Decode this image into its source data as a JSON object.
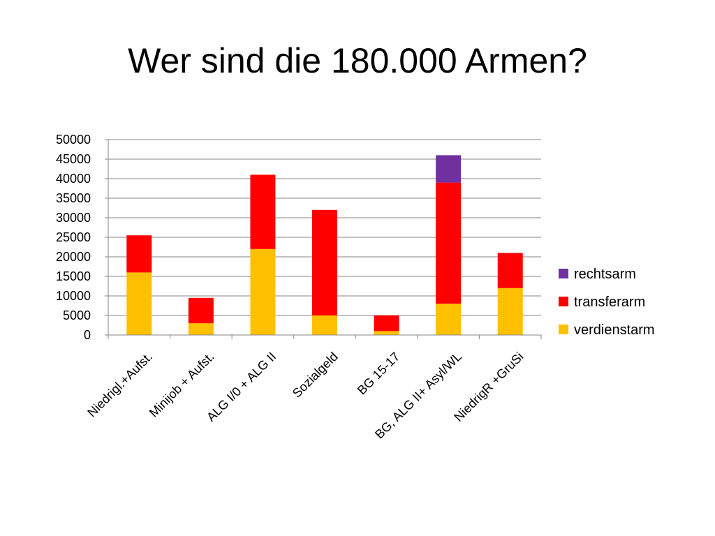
{
  "slide": {
    "title": "Wer sind die 180.000 Armen?"
  },
  "chart_data": {
    "type": "bar",
    "stacked": true,
    "title": "",
    "xlabel": "",
    "ylabel": "",
    "ylim": [
      0,
      50000
    ],
    "yticks": [
      0,
      5000,
      10000,
      15000,
      20000,
      25000,
      30000,
      35000,
      40000,
      45000,
      50000
    ],
    "grid": true,
    "legend_position": "right",
    "categories": [
      "Niedrigl.+Aufst.",
      "Minijob + Aufst.",
      "ALG I/0 + ALG II",
      "Sozialgeld",
      "BG 15-17",
      "BG, ALG II+ Asyl/WL",
      "NiedrigR +GruSi"
    ],
    "series": [
      {
        "name": "verdienstarm",
        "color": "#FFC000",
        "values": [
          16000,
          3000,
          22000,
          5000,
          1000,
          8000,
          12000
        ]
      },
      {
        "name": "transferarm",
        "color": "#FF0000",
        "values": [
          9500,
          6500,
          19000,
          27000,
          4000,
          31000,
          9000
        ]
      },
      {
        "name": "rechtsarm",
        "color": "#7030A0",
        "values": [
          0,
          0,
          0,
          0,
          0,
          7000,
          0
        ]
      }
    ],
    "legend_order": [
      "rechtsarm",
      "transferarm",
      "verdienstarm"
    ]
  }
}
